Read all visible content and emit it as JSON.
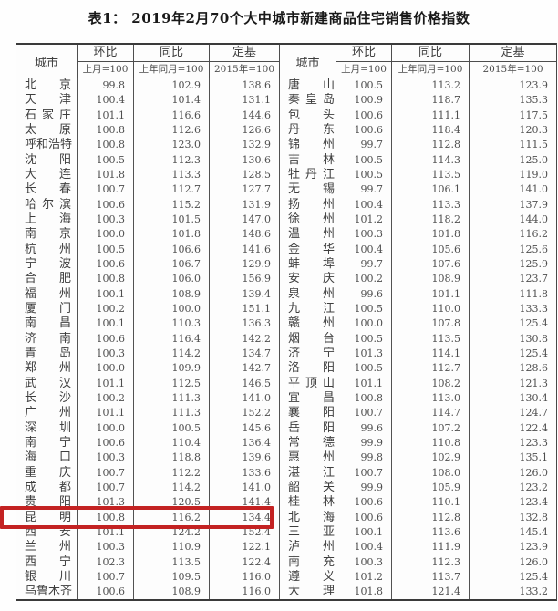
{
  "title": "表1： 2019年2月70个大中城市新建商品住宅销售价格指数",
  "header": {
    "city_label": "城市",
    "columns": [
      {
        "name": "环比",
        "base": "上月=100"
      },
      {
        "name": "同比",
        "base": "上年同月=100"
      },
      {
        "name": "定基",
        "base": "2015年=100"
      }
    ]
  },
  "highlight": {
    "city": "昆明",
    "color": "#c32222"
  },
  "table": {
    "left": [
      [
        "北京",
        "99.8",
        "102.9",
        "138.6"
      ],
      [
        "天津",
        "100.4",
        "101.4",
        "131.1"
      ],
      [
        "石家庄",
        "101.1",
        "116.6",
        "144.6"
      ],
      [
        "太原",
        "100.8",
        "112.6",
        "126.6"
      ],
      [
        "呼和浩特",
        "100.8",
        "123.0",
        "132.9"
      ],
      [
        "沈阳",
        "100.5",
        "112.3",
        "130.6"
      ],
      [
        "大连",
        "101.8",
        "113.3",
        "128.5"
      ],
      [
        "长春",
        "100.7",
        "112.7",
        "127.7"
      ],
      [
        "哈尔滨",
        "100.6",
        "115.2",
        "131.9"
      ],
      [
        "上海",
        "100.3",
        "101.5",
        "147.0"
      ],
      [
        "南京",
        "100.0",
        "101.8",
        "148.6"
      ],
      [
        "杭州",
        "100.5",
        "106.6",
        "141.6"
      ],
      [
        "宁波",
        "100.6",
        "106.7",
        "129.9"
      ],
      [
        "合肥",
        "100.8",
        "106.0",
        "156.9"
      ],
      [
        "福州",
        "100.1",
        "108.9",
        "139.4"
      ],
      [
        "厦门",
        "100.2",
        "100.0",
        "151.1"
      ],
      [
        "南昌",
        "100.1",
        "110.3",
        "136.3"
      ],
      [
        "济南",
        "100.6",
        "116.4",
        "142.2"
      ],
      [
        "青岛",
        "100.3",
        "114.2",
        "134.7"
      ],
      [
        "郑州",
        "100.0",
        "109.9",
        "142.7"
      ],
      [
        "武汉",
        "101.1",
        "112.5",
        "146.5"
      ],
      [
        "长沙",
        "100.2",
        "111.3",
        "141.0"
      ],
      [
        "广州",
        "101.1",
        "111.3",
        "152.2"
      ],
      [
        "深圳",
        "100.0",
        "100.5",
        "145.6"
      ],
      [
        "南宁",
        "100.6",
        "110.4",
        "136.4"
      ],
      [
        "海口",
        "100.3",
        "118.8",
        "139.6"
      ],
      [
        "重庆",
        "100.7",
        "112.2",
        "133.6"
      ],
      [
        "成都",
        "100.7",
        "114.2",
        "141.0"
      ],
      [
        "贵阳",
        "101.3",
        "120.5",
        "141.4"
      ],
      [
        "昆明",
        "100.8",
        "116.2",
        "134.4"
      ],
      [
        "西安",
        "101.1",
        "124.2",
        "152.4"
      ],
      [
        "兰州",
        "100.3",
        "110.9",
        "122.1"
      ],
      [
        "西宁",
        "102.3",
        "113.5",
        "122.4"
      ],
      [
        "银川",
        "100.7",
        "109.5",
        "116.0"
      ],
      [
        "乌鲁木齐",
        "100.6",
        "108.9",
        "116.0"
      ]
    ],
    "right": [
      [
        "唐山",
        "100.5",
        "113.2",
        "123.9"
      ],
      [
        "秦皇岛",
        "100.9",
        "118.7",
        "135.3"
      ],
      [
        "包头",
        "100.6",
        "111.1",
        "117.5"
      ],
      [
        "丹东",
        "100.6",
        "118.4",
        "120.3"
      ],
      [
        "锦州",
        "99.7",
        "112.8",
        "111.5"
      ],
      [
        "吉林",
        "100.5",
        "114.3",
        "125.0"
      ],
      [
        "牡丹江",
        "100.5",
        "113.5",
        "119.0"
      ],
      [
        "无锡",
        "99.7",
        "106.1",
        "141.0"
      ],
      [
        "扬州",
        "100.4",
        "113.3",
        "137.9"
      ],
      [
        "徐州",
        "101.2",
        "118.2",
        "144.0"
      ],
      [
        "温州",
        "100.3",
        "101.8",
        "116.2"
      ],
      [
        "金华",
        "100.4",
        "105.6",
        "125.6"
      ],
      [
        "蚌埠",
        "99.7",
        "107.6",
        "125.9"
      ],
      [
        "安庆",
        "100.2",
        "108.9",
        "123.7"
      ],
      [
        "泉州",
        "99.6",
        "101.1",
        "111.8"
      ],
      [
        "九江",
        "100.5",
        "110.0",
        "133.3"
      ],
      [
        "赣州",
        "100.0",
        "107.8",
        "125.4"
      ],
      [
        "烟台",
        "100.5",
        "113.5",
        "130.8"
      ],
      [
        "济宁",
        "101.3",
        "114.1",
        "125.4"
      ],
      [
        "洛阳",
        "100.5",
        "112.7",
        "128.6"
      ],
      [
        "平顶山",
        "101.1",
        "108.2",
        "121.3"
      ],
      [
        "宜昌",
        "100.8",
        "113.0",
        "130.4"
      ],
      [
        "襄阳",
        "100.7",
        "114.7",
        "124.7"
      ],
      [
        "岳阳",
        "99.6",
        "107.2",
        "122.4"
      ],
      [
        "常德",
        "99.9",
        "110.8",
        "123.3"
      ],
      [
        "惠州",
        "99.8",
        "102.9",
        "135.1"
      ],
      [
        "湛江",
        "100.7",
        "108.0",
        "126.0"
      ],
      [
        "韶关",
        "99.9",
        "105.9",
        "123.2"
      ],
      [
        "桂林",
        "100.6",
        "110.1",
        "123.4"
      ],
      [
        "北海",
        "100.6",
        "112.8",
        "132.8"
      ],
      [
        "三亚",
        "100.1",
        "113.6",
        "145.4"
      ],
      [
        "泸州",
        "100.4",
        "111.9",
        "123.9"
      ],
      [
        "南充",
        "100.3",
        "112.3",
        "126.0"
      ],
      [
        "遵义",
        "101.2",
        "113.7",
        "125.4"
      ],
      [
        "大理",
        "101.8",
        "121.4",
        "133.2"
      ]
    ]
  }
}
